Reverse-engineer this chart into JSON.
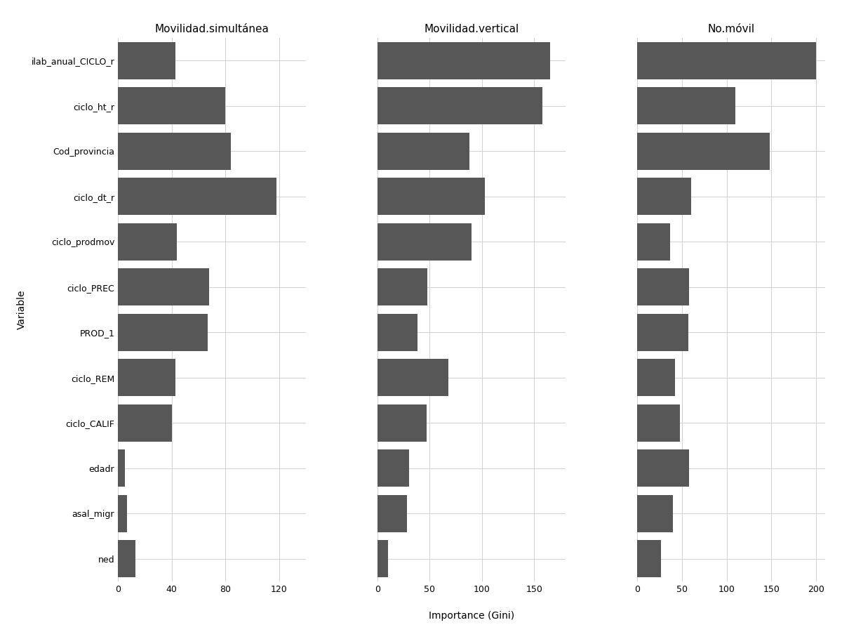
{
  "variables": [
    "ilab_anual_CICLO_r",
    "ciclo_ht_r",
    "Cod_provincia",
    "ciclo_dt_r",
    "ciclo_prodmov",
    "ciclo_PREC",
    "PROD_1",
    "ciclo_REM",
    "ciclo_CALIF",
    "edadr",
    "asal_migr",
    "ned"
  ],
  "panel1_title": "Movilidad.simultánea",
  "panel2_title": "Movilidad.vertical",
  "panel3_title": "No.móvil",
  "panel1_values": [
    43,
    80,
    84,
    118,
    44,
    68,
    67,
    43,
    40,
    5,
    7,
    13
  ],
  "panel2_values": [
    165,
    158,
    88,
    103,
    90,
    48,
    38,
    68,
    47,
    30,
    28,
    10
  ],
  "panel3_values": [
    200,
    110,
    148,
    60,
    37,
    58,
    57,
    42,
    48,
    58,
    40,
    27
  ],
  "panel1_xlim": [
    0,
    140
  ],
  "panel2_xlim": [
    0,
    180
  ],
  "panel3_xlim": [
    0,
    210
  ],
  "panel1_xticks": [
    0,
    40,
    80,
    120
  ],
  "panel2_xticks": [
    0,
    50,
    100,
    150
  ],
  "panel3_xticks": [
    0,
    50,
    100,
    150,
    200
  ],
  "bar_color": "#575757",
  "bar_height": 0.82,
  "xlabel": "Importance (Gini)",
  "ylabel": "Variable",
  "background_color": "#ffffff",
  "grid_color": "#d0d0d0",
  "panel_title_fontsize": 11,
  "label_fontsize": 10,
  "tick_fontsize": 9,
  "ylabel_fontsize": 10
}
